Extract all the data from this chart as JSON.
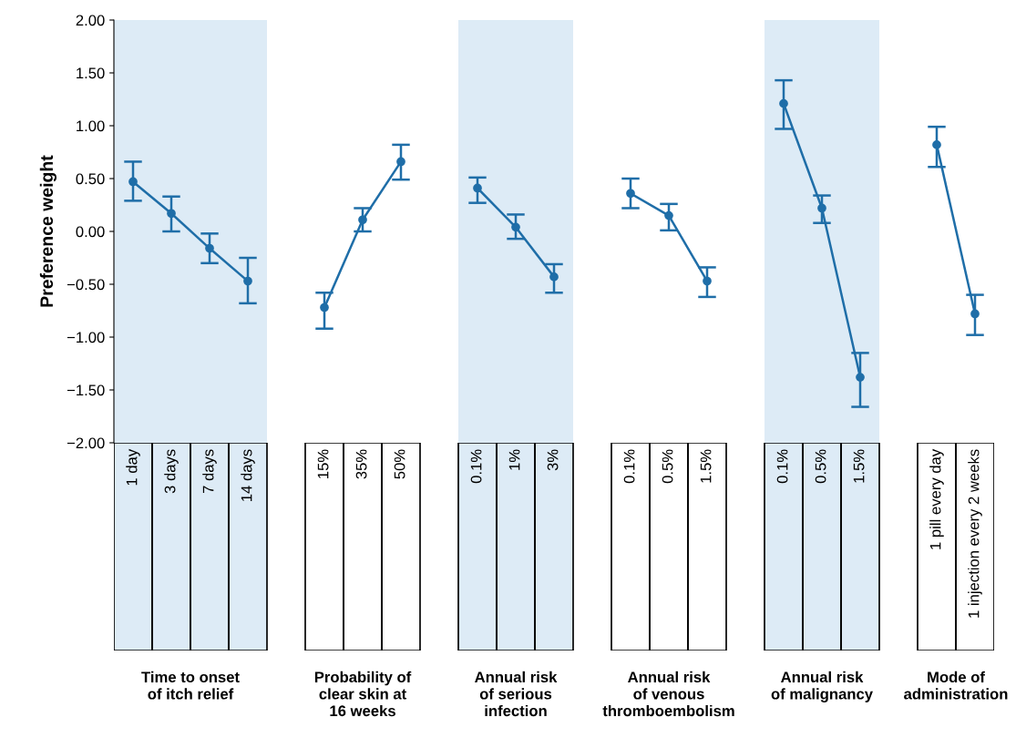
{
  "chart_data": {
    "type": "line",
    "ylabel": "Preference weight",
    "categories": [
      "1 day",
      "3 days",
      "7 days",
      "14 days",
      null,
      "15%",
      "35%",
      "50%",
      null,
      "0.1%",
      "1%",
      "3%",
      null,
      "0.1%",
      "0.5%",
      "1.5%",
      null,
      "0.1%",
      "0.5%",
      "1.5%",
      null,
      "1 pill every day",
      "1 injection every 2 weeks"
    ],
    "series": [
      {
        "color": "#1f6ea8",
        "values": [
          0.47,
          0.17,
          -0.16,
          -0.47,
          null,
          null,
          null,
          null,
          null,
          null,
          null,
          null,
          null,
          null,
          null,
          null,
          null,
          null,
          null,
          null,
          null,
          null,
          null
        ],
        "errors": [
          [
            0.29,
            0.66
          ],
          [
            0.0,
            0.33
          ],
          [
            -0.3,
            -0.02
          ],
          [
            -0.68,
            -0.25
          ],
          null,
          null,
          null,
          null,
          null,
          null,
          null,
          null,
          null,
          null,
          null,
          null,
          null,
          null,
          null,
          null,
          null,
          null,
          null
        ]
      },
      {
        "color": "#1f6ea8",
        "values": [
          null,
          null,
          null,
          null,
          null,
          -0.72,
          0.11,
          0.66,
          null,
          null,
          null,
          null,
          null,
          null,
          null,
          null,
          null,
          null,
          null,
          null,
          null,
          null,
          null
        ],
        "errors": [
          null,
          null,
          null,
          null,
          null,
          [
            -0.92,
            -0.58
          ],
          [
            0.0,
            0.22
          ],
          [
            0.49,
            0.82
          ],
          null,
          null,
          null,
          null,
          null,
          null,
          null,
          null,
          null,
          null,
          null,
          null,
          null,
          null,
          null
        ]
      },
      {
        "color": "#1f6ea8",
        "values": [
          null,
          null,
          null,
          null,
          null,
          null,
          null,
          null,
          null,
          0.41,
          0.04,
          -0.43,
          null,
          null,
          null,
          null,
          null,
          null,
          null,
          null,
          null,
          null,
          null
        ],
        "errors": [
          null,
          null,
          null,
          null,
          null,
          null,
          null,
          null,
          null,
          [
            0.27,
            0.51
          ],
          [
            -0.07,
            0.16
          ],
          [
            -0.58,
            -0.31
          ],
          null,
          null,
          null,
          null,
          null,
          null,
          null,
          null,
          null,
          null,
          null
        ]
      },
      {
        "color": "#1f6ea8",
        "values": [
          null,
          null,
          null,
          null,
          null,
          null,
          null,
          null,
          null,
          null,
          null,
          null,
          null,
          0.36,
          0.15,
          -0.47,
          null,
          null,
          null,
          null,
          null,
          null,
          null
        ],
        "errors": [
          null,
          null,
          null,
          null,
          null,
          null,
          null,
          null,
          null,
          null,
          null,
          null,
          null,
          [
            0.22,
            0.5
          ],
          [
            0.01,
            0.26
          ],
          [
            -0.62,
            -0.34
          ],
          null,
          null,
          null,
          null,
          null,
          null,
          null
        ]
      },
      {
        "color": "#1f6ea8",
        "values": [
          null,
          null,
          null,
          null,
          null,
          null,
          null,
          null,
          null,
          null,
          null,
          null,
          null,
          null,
          null,
          null,
          null,
          1.21,
          0.22,
          -1.38,
          null,
          null,
          null
        ],
        "errors": [
          null,
          null,
          null,
          null,
          null,
          null,
          null,
          null,
          null,
          null,
          null,
          null,
          null,
          null,
          null,
          null,
          null,
          [
            0.97,
            1.43
          ],
          [
            0.08,
            0.34
          ],
          [
            -1.66,
            -1.15
          ],
          null,
          null,
          null
        ]
      },
      {
        "color": "#1f6ea8",
        "values": [
          null,
          null,
          null,
          null,
          null,
          null,
          null,
          null,
          null,
          null,
          null,
          null,
          null,
          null,
          null,
          null,
          null,
          null,
          null,
          null,
          null,
          0.82,
          -0.78
        ],
        "errors": [
          null,
          null,
          null,
          null,
          null,
          null,
          null,
          null,
          null,
          null,
          null,
          null,
          null,
          null,
          null,
          null,
          null,
          null,
          null,
          null,
          null,
          [
            0.61,
            0.99
          ],
          [
            -0.98,
            -0.6
          ]
        ]
      }
    ],
    "ylim": [
      -2,
      2
    ],
    "yticks": [
      {
        "value": 2,
        "label": "2.00"
      },
      {
        "value": 1.5,
        "label": "1.50"
      },
      {
        "value": 1,
        "label": "1.00"
      },
      {
        "value": 0.5,
        "label": "0.50"
      },
      {
        "value": 0,
        "label": "0.00"
      },
      {
        "value": -0.5,
        "label": "−0.50"
      },
      {
        "value": -1,
        "label": "−1.00"
      },
      {
        "value": -1.5,
        "label": "−1.50"
      },
      {
        "value": -2,
        "label": "−2.00"
      }
    ],
    "annotations": [
      "Time to onset\nof itch relief",
      "Probability of\nclear skin at\n16 weeks",
      "Annual risk\nof serious\ninfection",
      "Annual risk\nof venous\nthromboembolism",
      "Annual risk\nof malignancy",
      "Mode of\nadministration"
    ],
    "marker": "circle",
    "line_style": "solid",
    "grid": false,
    "legend": false
  }
}
